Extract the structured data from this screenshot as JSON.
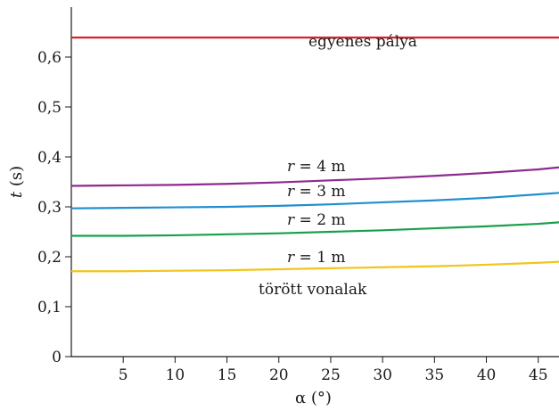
{
  "chart_data": {
    "type": "line",
    "title": "",
    "xlabel": "α (°)",
    "ylabel": "t (s)",
    "xlim": [
      0,
      47
    ],
    "ylim": [
      0,
      0.7
    ],
    "x_ticks": [
      {
        "value": 5,
        "label": "5"
      },
      {
        "value": 10,
        "label": "10"
      },
      {
        "value": 15,
        "label": "15"
      },
      {
        "value": 20,
        "label": "20"
      },
      {
        "value": 25,
        "label": "25"
      },
      {
        "value": 30,
        "label": "30"
      },
      {
        "value": 35,
        "label": "35"
      },
      {
        "value": 40,
        "label": "40"
      },
      {
        "value": 45,
        "label": "45"
      }
    ],
    "y_ticks": [
      {
        "value": 0,
        "label": "0"
      },
      {
        "value": 0.1,
        "label": "0,1"
      },
      {
        "value": 0.2,
        "label": "0,2"
      },
      {
        "value": 0.3,
        "label": "0,3"
      },
      {
        "value": 0.4,
        "label": "0,4"
      },
      {
        "value": 0.5,
        "label": "0,5"
      },
      {
        "value": 0.6,
        "label": "0,6"
      }
    ],
    "series": [
      {
        "name": "egyenes pálya",
        "color": "#d7222a",
        "x": [
          0,
          5,
          10,
          15,
          20,
          25,
          30,
          35,
          40,
          45,
          47
        ],
        "y": [
          0.639,
          0.639,
          0.639,
          0.639,
          0.639,
          0.639,
          0.639,
          0.639,
          0.639,
          0.639,
          0.639
        ]
      },
      {
        "name": "r = 4 m",
        "color": "#8e2a8e",
        "x": [
          0,
          5,
          10,
          15,
          20,
          25,
          30,
          35,
          40,
          45,
          47
        ],
        "y": [
          0.342,
          0.343,
          0.344,
          0.346,
          0.349,
          0.353,
          0.357,
          0.362,
          0.368,
          0.375,
          0.379
        ]
      },
      {
        "name": "r = 3 m",
        "color": "#1f8fd0",
        "x": [
          0,
          5,
          10,
          15,
          20,
          25,
          30,
          35,
          40,
          45,
          47
        ],
        "y": [
          0.297,
          0.298,
          0.299,
          0.3,
          0.302,
          0.305,
          0.309,
          0.313,
          0.318,
          0.325,
          0.328
        ]
      },
      {
        "name": "r = 2 m",
        "color": "#17a04a",
        "x": [
          0,
          5,
          10,
          15,
          20,
          25,
          30,
          35,
          40,
          45,
          47
        ],
        "y": [
          0.242,
          0.242,
          0.243,
          0.245,
          0.247,
          0.25,
          0.253,
          0.257,
          0.261,
          0.266,
          0.269
        ]
      },
      {
        "name": "r = 1 m",
        "color": "#f2c51b",
        "x": [
          0,
          5,
          10,
          15,
          20,
          25,
          30,
          35,
          40,
          45,
          47
        ],
        "y": [
          0.171,
          0.171,
          0.172,
          0.173,
          0.175,
          0.177,
          0.179,
          0.181,
          0.184,
          0.188,
          0.19
        ]
      }
    ],
    "annotations": [
      {
        "id": "straight",
        "parts": [
          {
            "text": "egyenes pálya",
            "italic": false
          }
        ]
      },
      {
        "id": "r4",
        "parts": [
          {
            "text": "r",
            "italic": true
          },
          {
            "text": " = 4 m",
            "italic": false
          }
        ]
      },
      {
        "id": "r3",
        "parts": [
          {
            "text": "r",
            "italic": true
          },
          {
            "text": " = 3 m",
            "italic": false
          }
        ]
      },
      {
        "id": "r2",
        "parts": [
          {
            "text": "r",
            "italic": true
          },
          {
            "text": " = 2 m",
            "italic": false
          }
        ]
      },
      {
        "id": "r1",
        "parts": [
          {
            "text": "r",
            "italic": true
          },
          {
            "text": " = 1 m",
            "italic": false
          }
        ]
      },
      {
        "id": "broken",
        "parts": [
          {
            "text": "törött vonalak",
            "italic": false
          }
        ]
      }
    ],
    "grid": false,
    "legend": "none"
  }
}
